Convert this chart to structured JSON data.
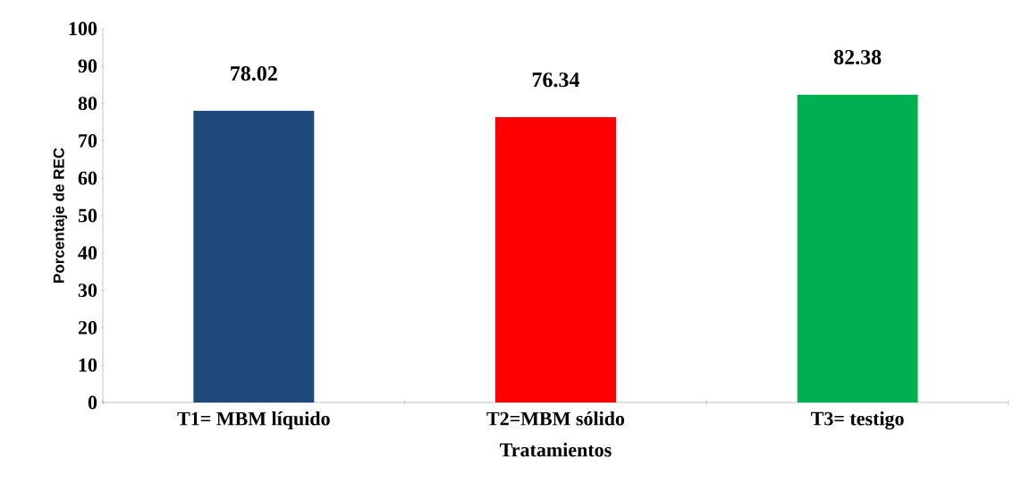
{
  "chart_data": {
    "type": "bar",
    "xlabel": "Tratamientos",
    "ylabel": "Porcentaje de REC",
    "categories": [
      "T1= MBM líquido",
      "T2=MBM sólido",
      "T3= testigo"
    ],
    "values": [
      78.02,
      76.34,
      82.38
    ],
    "colors": [
      "#1f497d",
      "#ff0000",
      "#00b050"
    ],
    "ylim": [
      0,
      100
    ],
    "yticks": [
      0,
      10,
      20,
      30,
      40,
      50,
      60,
      70,
      80,
      90,
      100
    ],
    "data_labels": true
  }
}
